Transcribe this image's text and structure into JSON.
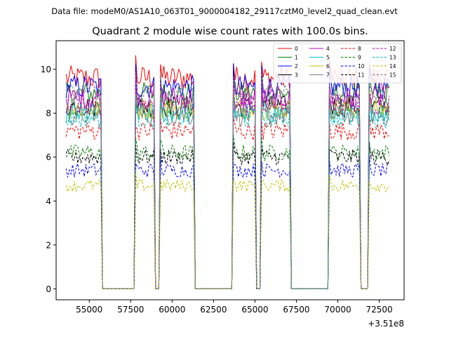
{
  "suptitle": "Data file: modeM0/AS1A10_063T01_9000004182_29117cztM0_level2_quad_clean.evt",
  "chart_data": {
    "type": "line",
    "title": "Quadrant 2 module wise count rates with 100.0s bins.",
    "xlabel": "",
    "ylabel": "",
    "x_offset_label": "+3.51e8",
    "xlim": [
      53000,
      74000
    ],
    "ylim": [
      -0.5,
      11.3
    ],
    "xticks": [
      55000,
      57500,
      60000,
      62500,
      65000,
      67500,
      70000,
      72500
    ],
    "xtick_labels": [
      "55000",
      "57500",
      "60000",
      "62500",
      "65000",
      "67500",
      "70000",
      "72500"
    ],
    "yticks": [
      0,
      2,
      4,
      6,
      8,
      10
    ],
    "ytick_labels": [
      "0",
      "2",
      "4",
      "6",
      "8",
      "10"
    ],
    "grid": false,
    "legend_position": "top-right",
    "active_segments": [
      [
        53600,
        55700
      ],
      [
        57800,
        58900
      ],
      [
        59300,
        61300
      ],
      [
        63700,
        65000
      ],
      [
        65400,
        67100
      ],
      [
        69500,
        71300
      ],
      [
        71900,
        73100
      ]
    ],
    "zero_level": 0.0,
    "series": [
      {
        "name": "0",
        "level": 9.6,
        "color": "#ff0000",
        "dash": "solid"
      },
      {
        "name": "1",
        "level": 8.9,
        "color": "#008000",
        "dash": "solid"
      },
      {
        "name": "2",
        "level": 9.2,
        "color": "#0000ff",
        "dash": "solid"
      },
      {
        "name": "3",
        "level": 8.3,
        "color": "#000000",
        "dash": "solid"
      },
      {
        "name": "4",
        "level": 8.7,
        "color": "#bf00bf",
        "dash": "solid"
      },
      {
        "name": "5",
        "level": 8.0,
        "color": "#00bfbf",
        "dash": "solid"
      },
      {
        "name": "6",
        "level": 8.2,
        "color": "#bfbf00",
        "dash": "solid"
      },
      {
        "name": "7",
        "level": 7.9,
        "color": "#808080",
        "dash": "solid"
      },
      {
        "name": "8",
        "level": 7.2,
        "color": "#ff0000",
        "dash": "dashed"
      },
      {
        "name": "9",
        "level": 6.2,
        "color": "#008000",
        "dash": "dashed"
      },
      {
        "name": "10",
        "level": 5.4,
        "color": "#0000ff",
        "dash": "dashed"
      },
      {
        "name": "11",
        "level": 6.0,
        "color": "#000000",
        "dash": "dashed"
      },
      {
        "name": "12",
        "level": 8.4,
        "color": "#bf00bf",
        "dash": "dashed"
      },
      {
        "name": "13",
        "level": 7.8,
        "color": "#00bfbf",
        "dash": "dashed"
      },
      {
        "name": "14",
        "level": 4.7,
        "color": "#bfbf00",
        "dash": "dashed"
      },
      {
        "name": "15",
        "level": 8.8,
        "color": "#808080",
        "dash": "dashed"
      }
    ]
  }
}
